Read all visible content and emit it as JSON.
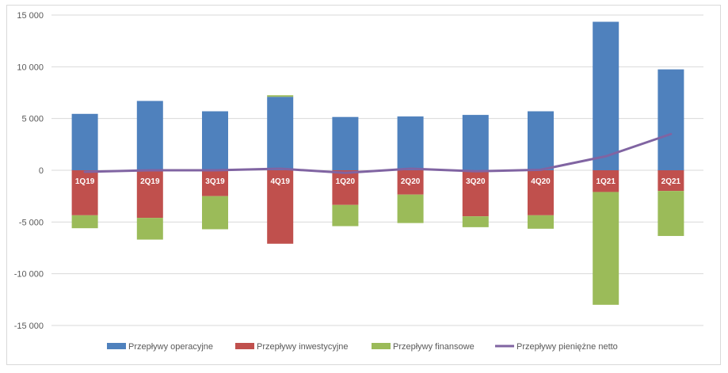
{
  "chart_data": {
    "type": "bar",
    "stacked": true,
    "categories": [
      "1Q19",
      "2Q19",
      "3Q19",
      "4Q19",
      "1Q20",
      "2Q20",
      "3Q20",
      "4Q20",
      "1Q21",
      "2Q21"
    ],
    "series": [
      {
        "name": "Przepływy operacyjne",
        "type": "bar",
        "color": "#4f81bd",
        "values": [
          5450,
          6700,
          5700,
          7100,
          5150,
          5200,
          5350,
          5700,
          14350,
          9750
        ]
      },
      {
        "name": "Przepływy inwestycyjne",
        "type": "bar",
        "color": "#c0504d",
        "values": [
          -4350,
          -4600,
          -2500,
          -7100,
          -3350,
          -2350,
          -4450,
          -4350,
          -2100,
          -2000
        ]
      },
      {
        "name": "Przepływy finansowe",
        "type": "bar",
        "color": "#9bbb59",
        "values": [
          -1250,
          -2100,
          -3200,
          150,
          -2050,
          -2750,
          -1050,
          -1300,
          -10900,
          -4350
        ]
      },
      {
        "name": "Przepływy pieniężne netto",
        "type": "line",
        "color": "#8064a2",
        "values": [
          -150,
          0,
          0,
          150,
          -250,
          150,
          -100,
          50,
          1350,
          3500
        ]
      }
    ],
    "ylim": [
      -15000,
      15000
    ],
    "yticks": [
      15000,
      10000,
      5000,
      0,
      -5000,
      -10000,
      -15000
    ],
    "ytick_labels": [
      "15 000",
      "10 000",
      "5 000",
      "0",
      "-5 000",
      "-10 000",
      "-15 000"
    ],
    "grid": true,
    "legend_position": "bottom",
    "title": "",
    "xlabel": "",
    "ylabel": ""
  }
}
